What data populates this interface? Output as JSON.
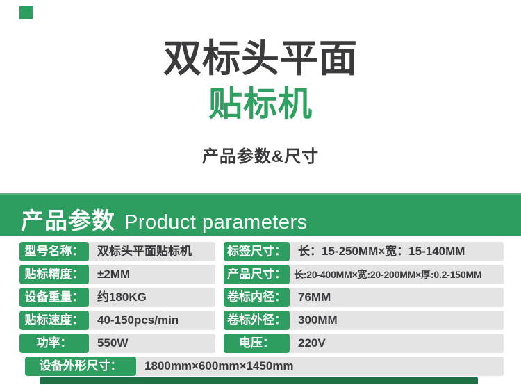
{
  "page": {
    "title_line1": "双标头平面",
    "title_line2": "贴标机",
    "subtitle": "产品参数&尺寸"
  },
  "banner": {
    "title_zh": "产品参数",
    "title_en": "Product parameters"
  },
  "specs": [
    {
      "label": "型号名称：",
      "value": "双标头平面贴标机"
    },
    {
      "label": "标签尺寸：",
      "value": "长：15-250MM×宽：15-140MM"
    },
    {
      "label": "贴标精度：",
      "value": "±2MM"
    },
    {
      "label": "产品尺寸：",
      "value": "长:20-400MM×宽:20-200MM×厚:0.2-150MM"
    },
    {
      "label": "设备重量：",
      "value": "约180KG"
    },
    {
      "label": "卷标内径：",
      "value": "76MM"
    },
    {
      "label": "贴标速度：",
      "value": "40-150pcs/min"
    },
    {
      "label": "卷标外径：",
      "value": "300MM"
    },
    {
      "label": "功率：",
      "value": "550W"
    },
    {
      "label": "电压：",
      "value": "220V"
    },
    {
      "label": "设备外形尺寸：",
      "value": "1800mm×600mm×1450mm"
    }
  ],
  "colors": {
    "brand_green": "#2E9E60",
    "brand_green_light": "#5CB483",
    "brand_green_dark": "#1E7044",
    "title_green": "#2EA05F",
    "text_dark": "#3A3A3C",
    "value_background": "#E4E4E4"
  }
}
